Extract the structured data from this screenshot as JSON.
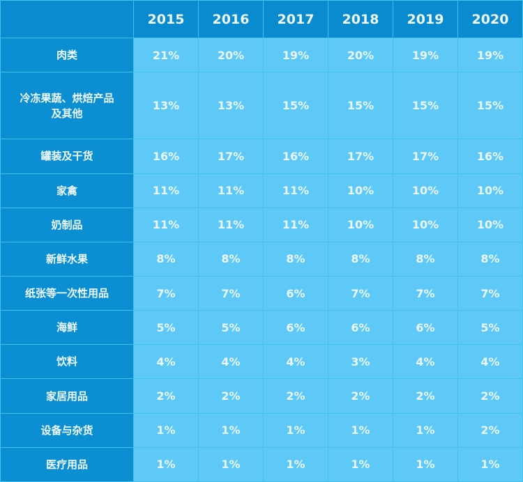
{
  "chart_data": {
    "type": "table",
    "columns": [
      "2015",
      "2016",
      "2017",
      "2018",
      "2019",
      "2020"
    ],
    "rows": [
      {
        "label": "肉类",
        "values": [
          "21%",
          "20%",
          "19%",
          "20%",
          "19%",
          "19%"
        ]
      },
      {
        "label": "冷冻果蔬、烘焙产品\n及其他",
        "values": [
          "13%",
          "13%",
          "15%",
          "15%",
          "15%",
          "15%"
        ]
      },
      {
        "label": "罐装及干货",
        "values": [
          "16%",
          "17%",
          "16%",
          "17%",
          "17%",
          "16%"
        ]
      },
      {
        "label": "家禽",
        "values": [
          "11%",
          "11%",
          "11%",
          "10%",
          "10%",
          "10%"
        ]
      },
      {
        "label": "奶制品",
        "values": [
          "11%",
          "11%",
          "11%",
          "10%",
          "10%",
          "10%"
        ]
      },
      {
        "label": "新鲜水果",
        "values": [
          "8%",
          "8%",
          "8%",
          "8%",
          "8%",
          "8%"
        ]
      },
      {
        "label": "纸张等一次性用品",
        "values": [
          "7%",
          "7%",
          "6%",
          "7%",
          "7%",
          "7%"
        ]
      },
      {
        "label": "海鲜",
        "values": [
          "5%",
          "5%",
          "6%",
          "6%",
          "6%",
          "5%"
        ]
      },
      {
        "label": "饮料",
        "values": [
          "4%",
          "4%",
          "4%",
          "3%",
          "4%",
          "4%"
        ]
      },
      {
        "label": "家居用品",
        "values": [
          "2%",
          "2%",
          "2%",
          "2%",
          "2%",
          "2%"
        ]
      },
      {
        "label": "设备与杂货",
        "values": [
          "1%",
          "1%",
          "1%",
          "1%",
          "1%",
          "2%"
        ]
      },
      {
        "label": "医疗用品",
        "values": [
          "1%",
          "1%",
          "1%",
          "1%",
          "1%",
          "1%"
        ]
      }
    ],
    "colors": {
      "header": "#0a8bd0",
      "label_column": "#0b8fd2",
      "cells": "#5ec8f6",
      "text": "#eef9ff"
    }
  }
}
